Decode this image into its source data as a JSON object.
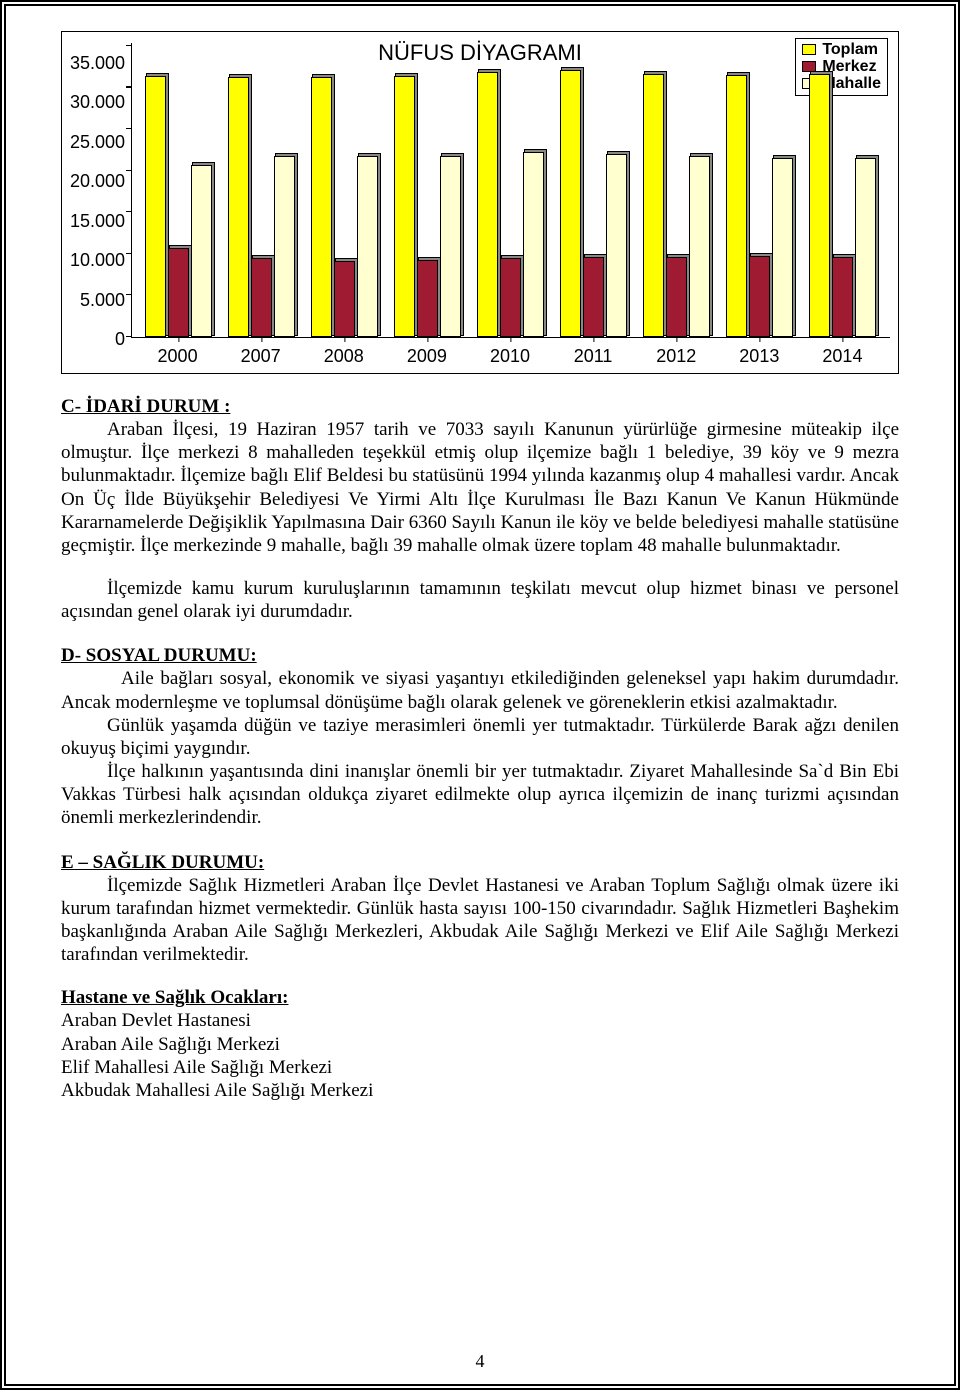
{
  "chart": {
    "type": "bar",
    "title": "NÜFUS DİYAGRAMI",
    "y_ticks": [
      "35.000",
      "30.000",
      "25.000",
      "20.000",
      "15.000",
      "10.000",
      "5.000",
      "0"
    ],
    "y_max": 35000,
    "categories": [
      "2000",
      "2007",
      "2008",
      "2009",
      "2010",
      "2011",
      "2012",
      "2013",
      "2014"
    ],
    "series": [
      {
        "name": "Toplam",
        "color": "#ffff00",
        "values": [
          31500,
          31400,
          31400,
          31500,
          32000,
          32200,
          31800,
          31600,
          31800
        ]
      },
      {
        "name": "Merkez",
        "color": "#9e1b32",
        "values": [
          10800,
          9500,
          9200,
          9300,
          9500,
          9700,
          9600,
          9800,
          9600
        ]
      },
      {
        "name": "Mahalle",
        "color": "#ffffd0",
        "values": [
          20800,
          21900,
          21800,
          21900,
          22300,
          22100,
          21800,
          21600,
          21600
        ]
      }
    ],
    "legend": [
      {
        "label": "Toplam",
        "color": "#ffff00"
      },
      {
        "label": "Merkez",
        "color": "#9e1b32"
      },
      {
        "label": "Mahalle",
        "color": "#ffffd0"
      }
    ],
    "tick_color": "#000000",
    "bar_border": "#000000",
    "bg_color": "#ffffff",
    "title_fontsize": 22,
    "axis_fontsize": 18
  },
  "sections": {
    "c_heading": "C- İDARİ DURUM :",
    "c_p1": "Araban İlçesi, 19 Haziran 1957 tarih ve 7033 sayılı Kanunun yürürlüğe girmesine müteakip ilçe olmuştur. İlçe merkezi 8 mahalleden teşekkül etmiş olup ilçemize bağlı 1 belediye, 39 köy ve 9 mezra bulunmaktadır. İlçemize bağlı Elif Beldesi bu statüsünü 1994 yılında kazanmış olup 4 mahallesi vardır. Ancak On Üç İlde Büyükşehir Belediyesi Ve Yirmi Altı İlçe Kurulması İle Bazı Kanun Ve Kanun Hükmünde Kararnamelerde Değişiklik Yapılmasına Dair 6360 Sayılı Kanun ile köy ve belde belediyesi mahalle statüsüne geçmiştir. İlçe merkezinde 9 mahalle, bağlı 39 mahalle olmak üzere toplam 48 mahalle bulunmaktadır.",
    "c_p2": "İlçemizde kamu kurum kuruluşlarının tamamının teşkilatı mevcut olup hizmet binası ve personel açısından genel olarak iyi durumdadır.",
    "d_heading": "D- SOSYAL DURUMU:",
    "d_p1": "Aile bağları sosyal, ekonomik ve siyasi yaşantıyı etkilediğinden geleneksel yapı hakim durumdadır. Ancak modernleşme ve toplumsal dönüşüme bağlı olarak gelenek ve göreneklerin etkisi azalmaktadır.",
    "d_p2": "Günlük yaşamda düğün ve taziye merasimleri önemli yer tutmaktadır. Türkülerde Barak ağzı denilen okuyuş biçimi yaygındır.",
    "d_p3": "İlçe halkının yaşantısında dini inanışlar önemli bir yer tutmaktadır. Ziyaret Mahallesinde Sa`d Bin Ebi Vakkas Türbesi halk açısından oldukça ziyaret edilmekte olup ayrıca ilçemizin de inanç turizmi açısından önemli merkezlerindendir.",
    "e_heading": "E – SAĞLIK DURUMU:",
    "e_p1": "İlçemizde Sağlık Hizmetleri Araban İlçe Devlet Hastanesi ve Araban Toplum Sağlığı olmak üzere iki kurum tarafından hizmet vermektedir. Günlük hasta sayısı 100-150 civarındadır. Sağlık Hizmetleri Başhekim başkanlığında Araban Aile Sağlığı Merkezleri, Akbudak Aile Sağlığı Merkezi ve Elif Aile Sağlığı Merkezi tarafından verilmektedir.",
    "list_heading": "Hastane ve Sağlık Ocakları:",
    "list": [
      "Araban Devlet Hastanesi",
      "Araban Aile Sağlığı Merkezi",
      "Elif Mahallesi Aile Sağlığı Merkezi",
      "Akbudak Mahallesi Aile Sağlığı Merkezi"
    ]
  },
  "page_number": "4"
}
